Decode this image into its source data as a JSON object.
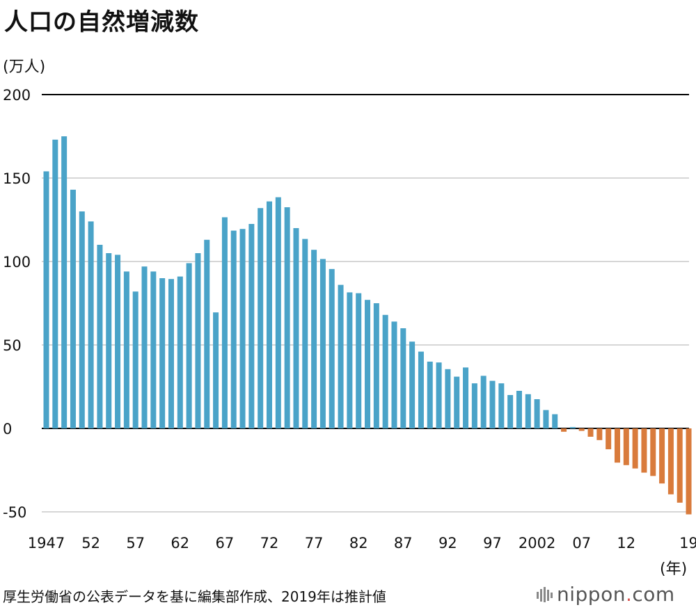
{
  "title": "人口の自然増減数",
  "y_unit": "(万人)",
  "x_unit": "(年)",
  "source": "厚生労働省の公表データを基に編集部作成、2019年は推計値",
  "logo": {
    "name": "nippon",
    "dot": ".",
    "suffix": "com"
  },
  "colors": {
    "positive": "#4aa3c8",
    "negative": "#d97b3c",
    "grid": "#c8c8c8",
    "axis": "#000000"
  },
  "chart_data": {
    "type": "bar",
    "title": "人口の自然増減数",
    "ylabel": "(万人)",
    "xlabel": "(年)",
    "ylim": [
      -50,
      200
    ],
    "yticks": [
      200,
      150,
      100,
      50,
      0,
      -50
    ],
    "grid": true,
    "x_tick_labels": [
      {
        "year": 1947,
        "label": "1947"
      },
      {
        "year": 1952,
        "label": "52"
      },
      {
        "year": 1957,
        "label": "57"
      },
      {
        "year": 1962,
        "label": "62"
      },
      {
        "year": 1967,
        "label": "67"
      },
      {
        "year": 1972,
        "label": "72"
      },
      {
        "year": 1977,
        "label": "77"
      },
      {
        "year": 1982,
        "label": "82"
      },
      {
        "year": 1987,
        "label": "87"
      },
      {
        "year": 1992,
        "label": "92"
      },
      {
        "year": 1997,
        "label": "97"
      },
      {
        "year": 2002,
        "label": "2002"
      },
      {
        "year": 2007,
        "label": "07"
      },
      {
        "year": 2012,
        "label": "12"
      },
      {
        "year": 2019,
        "label": "19"
      }
    ],
    "categories": [
      1947,
      1948,
      1949,
      1950,
      1951,
      1952,
      1953,
      1954,
      1955,
      1956,
      1957,
      1958,
      1959,
      1960,
      1961,
      1962,
      1963,
      1964,
      1965,
      1966,
      1967,
      1968,
      1969,
      1970,
      1971,
      1972,
      1973,
      1974,
      1975,
      1976,
      1977,
      1978,
      1979,
      1980,
      1981,
      1982,
      1983,
      1984,
      1985,
      1986,
      1987,
      1988,
      1989,
      1990,
      1991,
      1992,
      1993,
      1994,
      1995,
      1996,
      1997,
      1998,
      1999,
      2000,
      2001,
      2002,
      2003,
      2004,
      2005,
      2006,
      2007,
      2008,
      2009,
      2010,
      2011,
      2012,
      2013,
      2014,
      2015,
      2016,
      2017,
      2018,
      2019
    ],
    "values": [
      154,
      173,
      175,
      143,
      130,
      124,
      110,
      105,
      104,
      94,
      82,
      97,
      94,
      90,
      89.5,
      91,
      99,
      105,
      113,
      69.5,
      126.5,
      118.5,
      119.5,
      122.5,
      132,
      136,
      138.5,
      132.5,
      120,
      113.5,
      107,
      101.5,
      95.5,
      86,
      81.5,
      81,
      77,
      75,
      68,
      64,
      60,
      52,
      46,
      40,
      39.5,
      35.5,
      31,
      36.5,
      27,
      31.5,
      28.5,
      27,
      20,
      22.5,
      20.5,
      17.5,
      11,
      8.5,
      -2,
      0.8,
      -1.5,
      -5,
      -7,
      -12.5,
      -20.5,
      -22,
      -24,
      -26.5,
      -28.5,
      -33,
      -39.5,
      -44.5,
      -51.5
    ]
  }
}
